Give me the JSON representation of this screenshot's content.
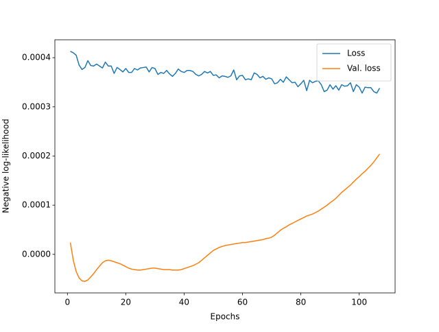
{
  "chart_data": {
    "type": "line",
    "x": [
      1,
      2,
      3,
      4,
      5,
      6,
      7,
      8,
      9,
      10,
      11,
      12,
      13,
      14,
      15,
      16,
      17,
      18,
      19,
      20,
      21,
      22,
      23,
      24,
      25,
      26,
      27,
      28,
      29,
      30,
      31,
      32,
      33,
      34,
      35,
      36,
      37,
      38,
      39,
      40,
      41,
      42,
      43,
      44,
      45,
      46,
      47,
      48,
      49,
      50,
      51,
      52,
      53,
      54,
      55,
      56,
      57,
      58,
      59,
      60,
      61,
      62,
      63,
      64,
      65,
      66,
      67,
      68,
      69,
      70,
      71,
      72,
      73,
      74,
      75,
      76,
      77,
      78,
      79,
      80,
      81,
      82,
      83,
      84,
      85,
      86,
      87,
      88,
      89,
      90,
      91,
      92,
      93,
      94,
      95,
      96,
      97,
      98,
      99,
      100,
      101,
      102,
      103,
      104,
      105,
      106,
      107
    ],
    "series": [
      {
        "name": "Loss",
        "color": "#1f77b4",
        "values": [
          0.000413,
          0.00041,
          0.000405,
          0.000385,
          0.000376,
          0.00038,
          0.000394,
          0.000384,
          0.000383,
          0.000387,
          0.000383,
          0.000379,
          0.000391,
          0.000383,
          0.000383,
          0.000368,
          0.00038,
          0.000376,
          0.000371,
          0.000378,
          0.00037,
          0.00037,
          0.000378,
          0.000375,
          0.000379,
          0.00038,
          0.000381,
          0.000371,
          0.00038,
          0.000378,
          0.000366,
          0.00037,
          0.000368,
          0.000374,
          0.000367,
          0.000362,
          0.000368,
          0.000377,
          0.000372,
          0.00037,
          0.000374,
          0.000374,
          0.000372,
          0.000366,
          0.000363,
          0.000366,
          0.000372,
          0.000369,
          0.000372,
          0.000364,
          0.000365,
          0.000359,
          0.000363,
          0.000362,
          0.00036,
          0.000363,
          0.000375,
          0.000355,
          0.000363,
          0.000364,
          0.000355,
          0.000357,
          0.000355,
          0.000369,
          0.000366,
          0.000359,
          0.000362,
          0.000356,
          0.000359,
          0.000357,
          0.000347,
          0.000349,
          0.000356,
          0.00035,
          0.000361,
          0.000355,
          0.000349,
          0.00035,
          0.000341,
          0.000347,
          0.000354,
          0.000333,
          0.000354,
          0.000349,
          0.000352,
          0.000353,
          0.000345,
          0.000331,
          0.000334,
          0.000345,
          0.000336,
          0.000343,
          0.000334,
          0.000345,
          0.000342,
          0.000343,
          0.000349,
          0.000331,
          0.000345,
          0.00034,
          0.000328,
          0.00034,
          0.000339,
          0.000339,
          0.000331,
          0.000328,
          0.000338
        ]
      },
      {
        "name": "Val. loss",
        "color": "#ff7f0e",
        "values": [
          2.4e-05,
          -1.2e-05,
          -3.5e-05,
          -4.8e-05,
          -5.4e-05,
          -5.5e-05,
          -5.2e-05,
          -4.6e-05,
          -3.9e-05,
          -3.1e-05,
          -2.4e-05,
          -1.7e-05,
          -1.3e-05,
          -1.2e-05,
          -1.3e-05,
          -1.5e-05,
          -1.7e-05,
          -1.9e-05,
          -2.2e-05,
          -2.5e-05,
          -2.8e-05,
          -3e-05,
          -3.1e-05,
          -3.2e-05,
          -3.2e-05,
          -3.1e-05,
          -3e-05,
          -2.9e-05,
          -2.8e-05,
          -2.8e-05,
          -2.9e-05,
          -3e-05,
          -3.1e-05,
          -3.1e-05,
          -3.1e-05,
          -3.2e-05,
          -3.2e-05,
          -3.2e-05,
          -3.1e-05,
          -2.9e-05,
          -2.7e-05,
          -2.5e-05,
          -2.3e-05,
          -2e-05,
          -1.7e-05,
          -1.2e-05,
          -7e-06,
          -2e-06,
          3e-06,
          8e-06,
          1.1e-05,
          1.4e-05,
          1.6e-05,
          1.8e-05,
          1.9e-05,
          2e-05,
          2.1e-05,
          2.2e-05,
          2.3e-05,
          2.4e-05,
          2.4e-05,
          2.5e-05,
          2.6e-05,
          2.7e-05,
          2.8e-05,
          2.9e-05,
          3e-05,
          3.2e-05,
          3.3e-05,
          3.5e-05,
          3.9e-05,
          4.4e-05,
          4.9e-05,
          5.3e-05,
          5.6e-05,
          6e-05,
          6.3e-05,
          6.6e-05,
          6.9e-05,
          7.2e-05,
          7.5e-05,
          7.8e-05,
          8e-05,
          8.2e-05,
          8.5e-05,
          8.8e-05,
          9.2e-05,
          9.6e-05,
          0.0001,
          0.000105,
          0.000109,
          0.000114,
          0.00012,
          0.000126,
          0.000131,
          0.000136,
          0.000141,
          0.000147,
          0.000153,
          0.000158,
          0.000164,
          0.000169,
          0.000175,
          0.000181,
          0.000188,
          0.000196,
          0.000204
        ]
      }
    ],
    "xlabel": "Epochs",
    "ylabel": "Negative log-likelihood",
    "xlim": [
      -4.3,
      112.3
    ],
    "xticks": [
      0,
      20,
      40,
      60,
      80,
      100
    ],
    "ylim": [
      -7.84e-05,
      0.0004364
    ],
    "yticks": [
      {
        "value": 0,
        "label": "0.0000"
      },
      {
        "value": 0.0001,
        "label": "0.0001"
      },
      {
        "value": 0.0002,
        "label": "0.0002"
      },
      {
        "value": 0.0003,
        "label": "0.0003"
      },
      {
        "value": 0.0004,
        "label": "0.0004"
      }
    ],
    "legend": "upper right",
    "grid": false
  }
}
